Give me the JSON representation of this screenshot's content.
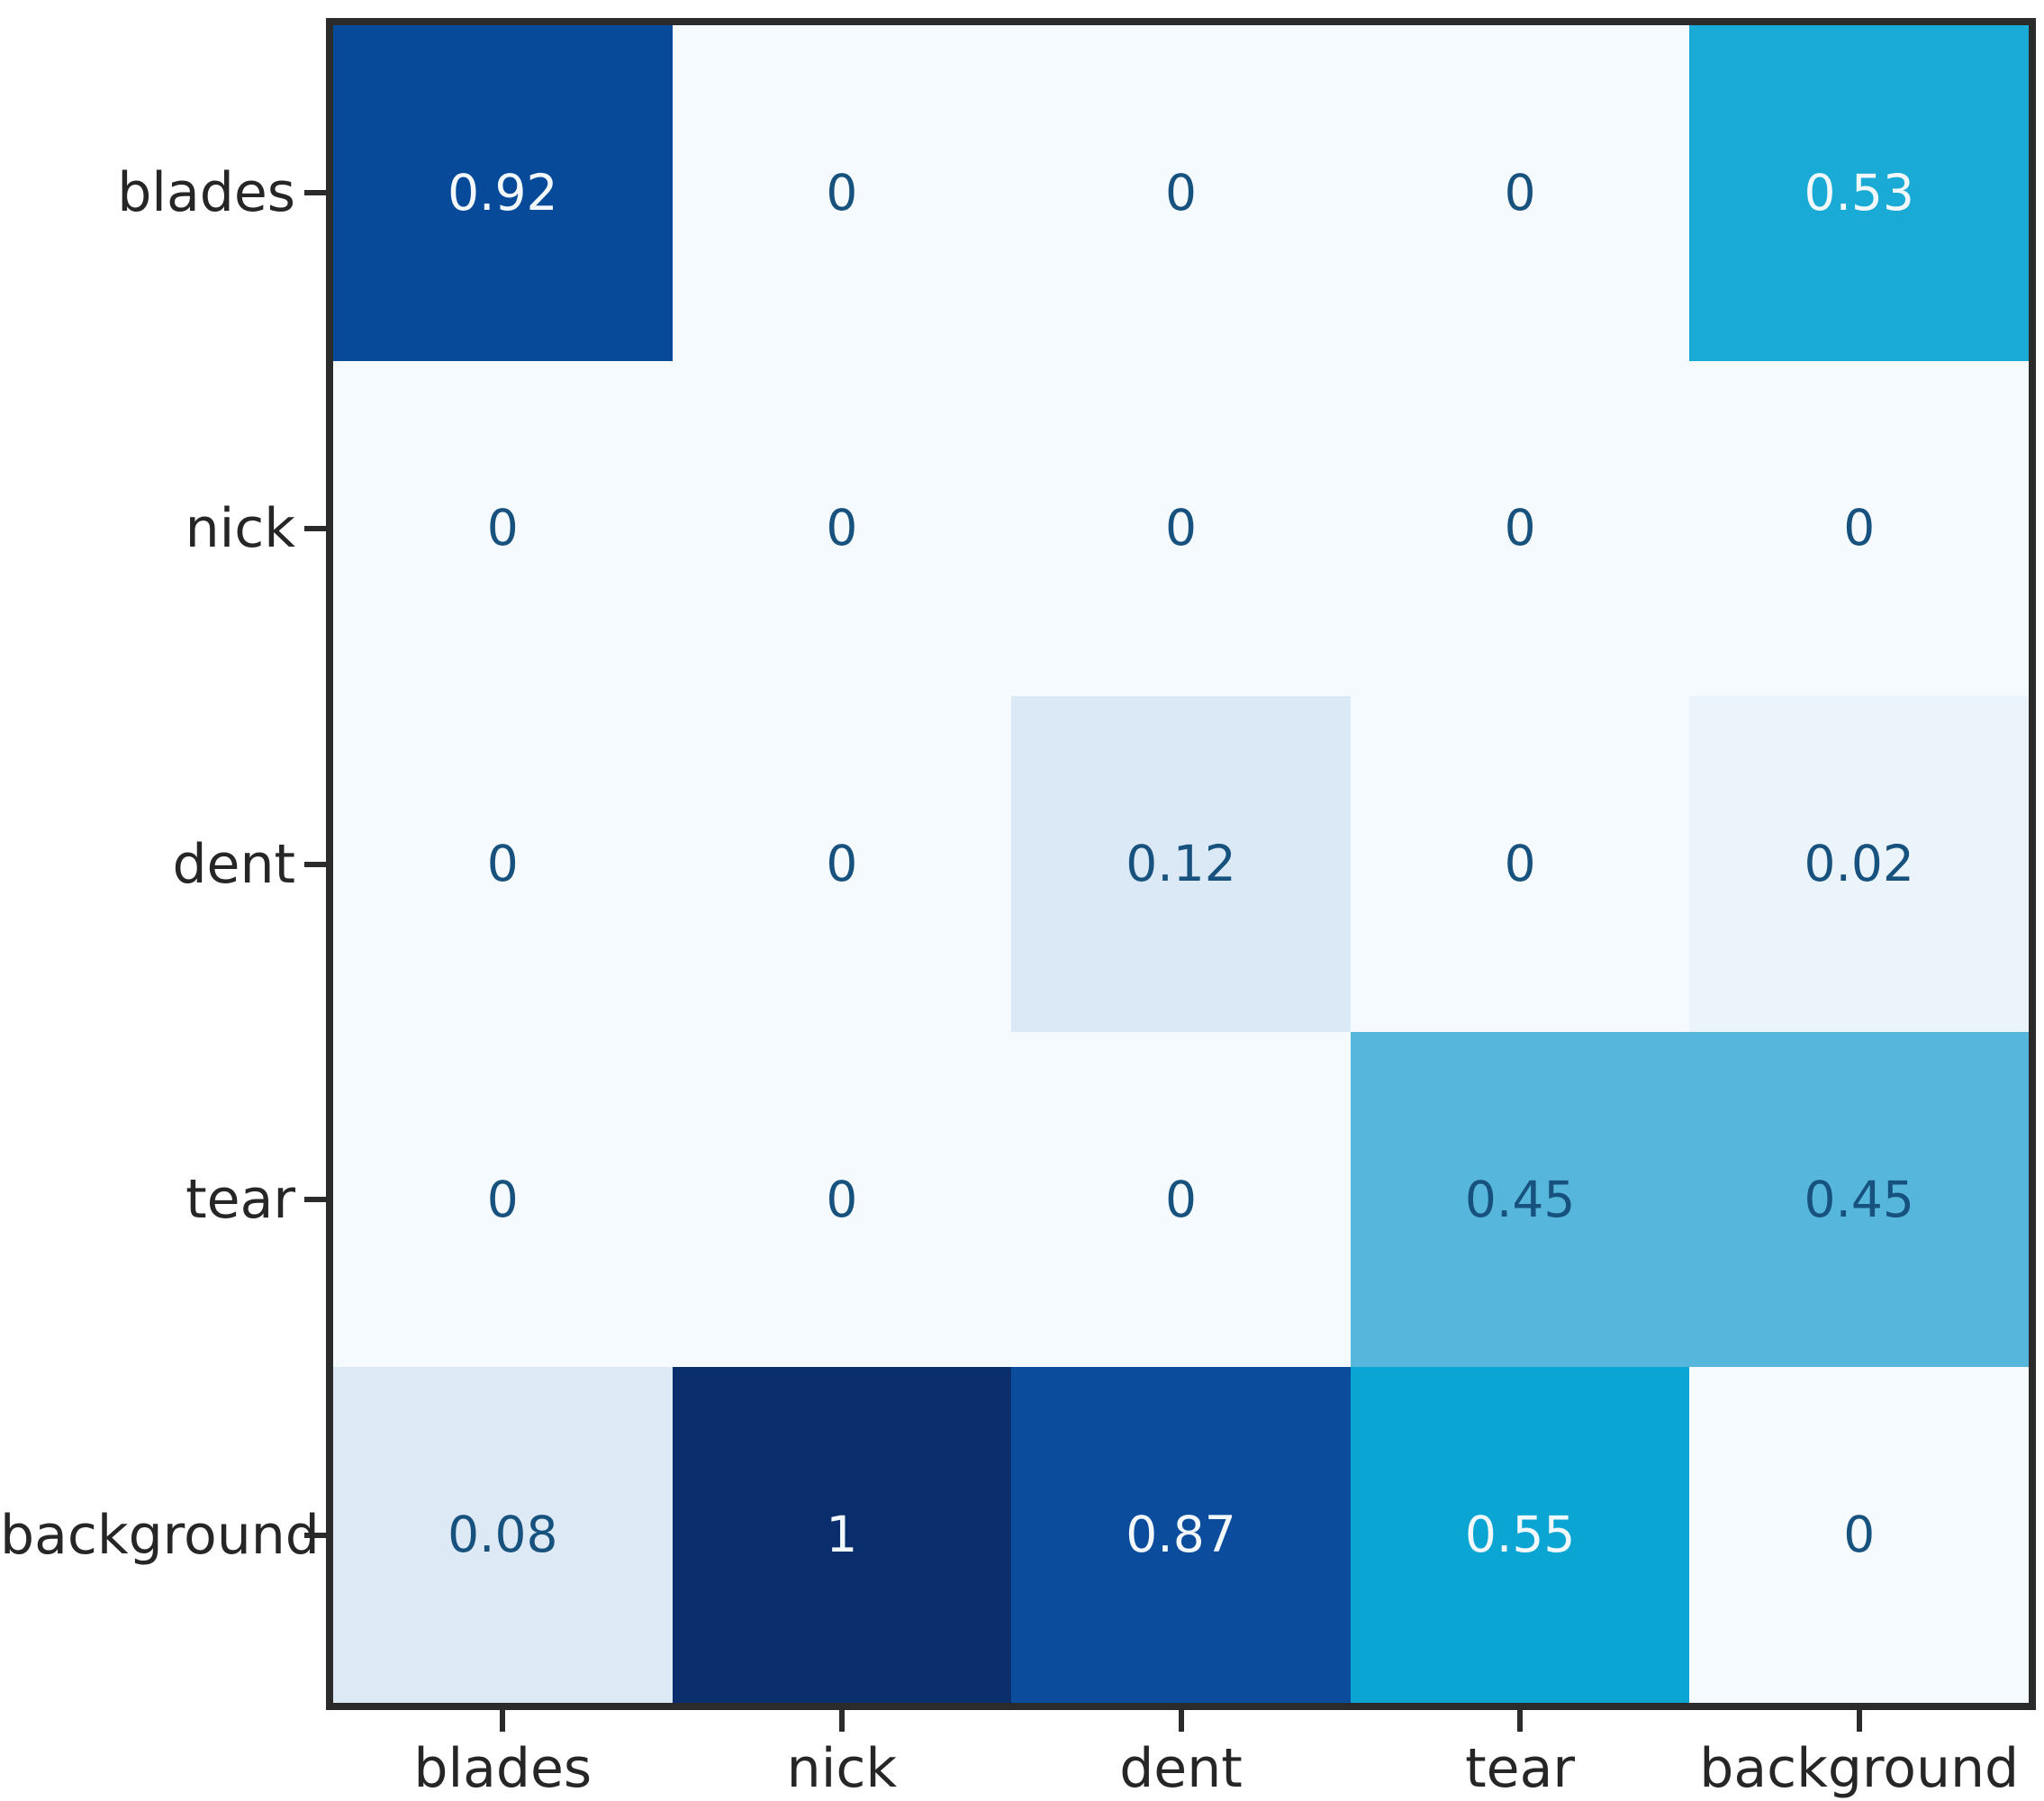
{
  "figure": {
    "background_color": "#ffffff",
    "spine_color": "#2b2b2b"
  },
  "chart_data": {
    "type": "heatmap",
    "title": "",
    "xlabel": "",
    "ylabel": "",
    "x_categories": [
      "blades",
      "nick",
      "dent",
      "tear",
      "background"
    ],
    "y_categories": [
      "blades",
      "nick",
      "dent",
      "tear",
      "background"
    ],
    "values": [
      [
        0.92,
        0,
        0,
        0,
        0.53
      ],
      [
        0,
        0,
        0,
        0,
        0
      ],
      [
        0,
        0,
        0.12,
        0,
        0.02
      ],
      [
        0,
        0,
        0,
        0.45,
        0.45
      ],
      [
        0.08,
        1,
        0.87,
        0.55,
        0
      ]
    ],
    "cell_labels": [
      [
        "0.92",
        "0",
        "0",
        "0",
        "0.53"
      ],
      [
        "0",
        "0",
        "0",
        "0",
        "0"
      ],
      [
        "0",
        "0",
        "0.12",
        "0",
        "0.02"
      ],
      [
        "0",
        "0",
        "0",
        "0.45",
        "0.45"
      ],
      [
        "0.08",
        "1",
        "0.87",
        "0.55",
        "0"
      ]
    ],
    "cell_colors": [
      [
        "#084a9a",
        "#f5fafe",
        "#f5fafe",
        "#f5fafe",
        "#1aaad6"
      ],
      [
        "#f5fafe",
        "#f5fafe",
        "#f5fafe",
        "#f5fafe",
        "#f5fafe"
      ],
      [
        "#f5fafe",
        "#f5fafe",
        "#dbe9f6",
        "#f5fafe",
        "#ecf4fb"
      ],
      [
        "#f5fafe",
        "#f5fafe",
        "#f5fafe",
        "#57b6db",
        "#57b6db"
      ],
      [
        "#dde9f5",
        "#092e6b",
        "#0b4c9c",
        "#0aa5d2",
        "#f5fafe"
      ]
    ],
    "colormap": "Blues",
    "value_range": [
      0,
      1
    ],
    "text_color_on_dark": "#f2f8fc",
    "text_color_on_light": "#17517e",
    "text_threshold": 0.5,
    "legend": "none",
    "grid": false
  }
}
